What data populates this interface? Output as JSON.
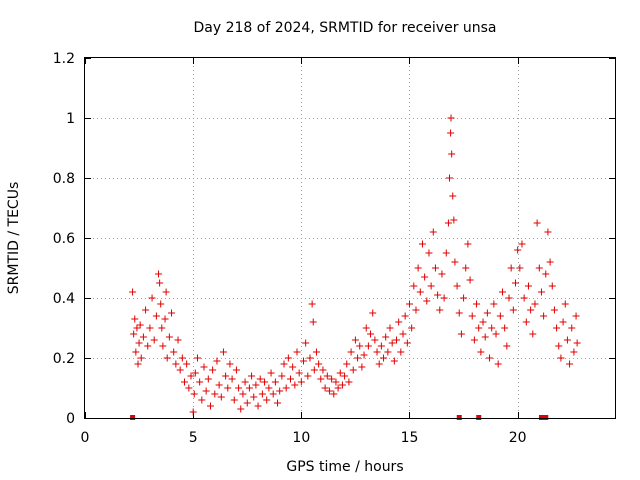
{
  "chart_data": {
    "type": "scatter",
    "title": "Day 218 of 2024, SRMTID for receiver unsa",
    "xlabel": "GPS time / hours",
    "ylabel": "SRMTID / TECUs",
    "xlim": [
      0,
      24.5
    ],
    "ylim": [
      0,
      1.2
    ],
    "xticks": [
      0,
      5,
      10,
      15,
      20
    ],
    "yticks": [
      0,
      0.2,
      0.4,
      0.6,
      0.8,
      1,
      1.2
    ],
    "xtick_labels": [
      "0",
      "5",
      "10",
      "15",
      "20"
    ],
    "ytick_labels": [
      "0",
      "0.2",
      "0.4",
      "0.6",
      "0.8",
      "1",
      "1.2"
    ],
    "grid": true,
    "marker": "+",
    "color": "#e00000",
    "series": [
      {
        "name": "SRMTID",
        "points": [
          [
            2.2,
            0.42
          ],
          [
            2.25,
            0.28
          ],
          [
            2.3,
            0.33
          ],
          [
            2.35,
            0.22
          ],
          [
            2.4,
            0.3
          ],
          [
            2.45,
            0.18
          ],
          [
            2.5,
            0.25
          ],
          [
            2.55,
            0.31
          ],
          [
            2.6,
            0.2
          ],
          [
            2.7,
            0.27
          ],
          [
            2.8,
            0.36
          ],
          [
            2.9,
            0.24
          ],
          [
            3.0,
            0.3
          ],
          [
            3.1,
            0.4
          ],
          [
            3.2,
            0.26
          ],
          [
            3.3,
            0.34
          ],
          [
            3.4,
            0.48
          ],
          [
            3.45,
            0.45
          ],
          [
            3.5,
            0.38
          ],
          [
            3.55,
            0.3
          ],
          [
            3.6,
            0.24
          ],
          [
            3.7,
            0.33
          ],
          [
            3.75,
            0.42
          ],
          [
            3.8,
            0.2
          ],
          [
            3.9,
            0.27
          ],
          [
            4.0,
            0.35
          ],
          [
            4.1,
            0.22
          ],
          [
            4.2,
            0.18
          ],
          [
            4.3,
            0.26
          ],
          [
            4.4,
            0.16
          ],
          [
            4.5,
            0.2
          ],
          [
            4.6,
            0.12
          ],
          [
            4.7,
            0.18
          ],
          [
            4.8,
            0.1
          ],
          [
            4.9,
            0.14
          ],
          [
            5.0,
            0.02
          ],
          [
            5.05,
            0.08
          ],
          [
            5.1,
            0.15
          ],
          [
            5.2,
            0.2
          ],
          [
            5.3,
            0.12
          ],
          [
            5.4,
            0.06
          ],
          [
            5.5,
            0.17
          ],
          [
            5.6,
            0.09
          ],
          [
            5.7,
            0.13
          ],
          [
            5.8,
            0.04
          ],
          [
            5.9,
            0.16
          ],
          [
            6.0,
            0.08
          ],
          [
            6.1,
            0.19
          ],
          [
            6.2,
            0.11
          ],
          [
            6.3,
            0.07
          ],
          [
            6.4,
            0.22
          ],
          [
            6.5,
            0.14
          ],
          [
            6.6,
            0.1
          ],
          [
            6.7,
            0.18
          ],
          [
            6.8,
            0.13
          ],
          [
            6.9,
            0.06
          ],
          [
            7.0,
            0.16
          ],
          [
            7.1,
            0.1
          ],
          [
            7.2,
            0.03
          ],
          [
            7.3,
            0.08
          ],
          [
            7.4,
            0.12
          ],
          [
            7.5,
            0.05
          ],
          [
            7.6,
            0.1
          ],
          [
            7.7,
            0.14
          ],
          [
            7.8,
            0.07
          ],
          [
            7.9,
            0.11
          ],
          [
            8.0,
            0.04
          ],
          [
            8.1,
            0.13
          ],
          [
            8.2,
            0.08
          ],
          [
            8.3,
            0.12
          ],
          [
            8.4,
            0.06
          ],
          [
            8.5,
            0.1
          ],
          [
            8.6,
            0.15
          ],
          [
            8.7,
            0.08
          ],
          [
            8.8,
            0.12
          ],
          [
            8.9,
            0.05
          ],
          [
            9.0,
            0.09
          ],
          [
            9.1,
            0.14
          ],
          [
            9.2,
            0.18
          ],
          [
            9.3,
            0.1
          ],
          [
            9.4,
            0.2
          ],
          [
            9.5,
            0.13
          ],
          [
            9.6,
            0.17
          ],
          [
            9.7,
            0.11
          ],
          [
            9.8,
            0.22
          ],
          [
            9.9,
            0.15
          ],
          [
            10.0,
            0.12
          ],
          [
            10.1,
            0.19
          ],
          [
            10.2,
            0.25
          ],
          [
            10.3,
            0.14
          ],
          [
            10.4,
            0.2
          ],
          [
            10.5,
            0.38
          ],
          [
            10.55,
            0.32
          ],
          [
            10.6,
            0.16
          ],
          [
            10.7,
            0.22
          ],
          [
            10.8,
            0.18
          ],
          [
            10.9,
            0.13
          ],
          [
            11.0,
            0.16
          ],
          [
            11.1,
            0.1
          ],
          [
            11.2,
            0.14
          ],
          [
            11.3,
            0.09
          ],
          [
            11.4,
            0.13
          ],
          [
            11.5,
            0.08
          ],
          [
            11.6,
            0.12
          ],
          [
            11.7,
            0.1
          ],
          [
            11.8,
            0.15
          ],
          [
            11.9,
            0.11
          ],
          [
            12.0,
            0.14
          ],
          [
            12.1,
            0.18
          ],
          [
            12.2,
            0.12
          ],
          [
            12.3,
            0.22
          ],
          [
            12.4,
            0.16
          ],
          [
            12.5,
            0.26
          ],
          [
            12.6,
            0.2
          ],
          [
            12.7,
            0.24
          ],
          [
            12.8,
            0.17
          ],
          [
            12.9,
            0.21
          ],
          [
            13.0,
            0.3
          ],
          [
            13.1,
            0.24
          ],
          [
            13.2,
            0.28
          ],
          [
            13.3,
            0.35
          ],
          [
            13.4,
            0.26
          ],
          [
            13.5,
            0.22
          ],
          [
            13.6,
            0.18
          ],
          [
            13.7,
            0.24
          ],
          [
            13.8,
            0.2
          ],
          [
            13.9,
            0.27
          ],
          [
            14.0,
            0.22
          ],
          [
            14.1,
            0.3
          ],
          [
            14.2,
            0.25
          ],
          [
            14.3,
            0.19
          ],
          [
            14.4,
            0.26
          ],
          [
            14.5,
            0.32
          ],
          [
            14.6,
            0.22
          ],
          [
            14.7,
            0.28
          ],
          [
            14.8,
            0.34
          ],
          [
            14.9,
            0.25
          ],
          [
            15.0,
            0.38
          ],
          [
            15.1,
            0.3
          ],
          [
            15.2,
            0.44
          ],
          [
            15.3,
            0.36
          ],
          [
            15.4,
            0.5
          ],
          [
            15.5,
            0.42
          ],
          [
            15.6,
            0.58
          ],
          [
            15.7,
            0.47
          ],
          [
            15.8,
            0.39
          ],
          [
            15.9,
            0.55
          ],
          [
            16.0,
            0.44
          ],
          [
            16.1,
            0.62
          ],
          [
            16.2,
            0.5
          ],
          [
            16.3,
            0.41
          ],
          [
            16.4,
            0.36
          ],
          [
            16.5,
            0.48
          ],
          [
            16.6,
            0.4
          ],
          [
            16.7,
            0.55
          ],
          [
            16.8,
            0.65
          ],
          [
            16.85,
            0.8
          ],
          [
            16.9,
            0.95
          ],
          [
            16.92,
            1.0
          ],
          [
            16.95,
            0.88
          ],
          [
            17.0,
            0.74
          ],
          [
            17.05,
            0.66
          ],
          [
            17.1,
            0.52
          ],
          [
            17.2,
            0.44
          ],
          [
            17.3,
            0.35
          ],
          [
            17.4,
            0.28
          ],
          [
            17.5,
            0.4
          ],
          [
            17.6,
            0.5
          ],
          [
            17.7,
            0.58
          ],
          [
            17.8,
            0.46
          ],
          [
            17.9,
            0.34
          ],
          [
            18.0,
            0.26
          ],
          [
            18.1,
            0.38
          ],
          [
            18.2,
            0.3
          ],
          [
            18.3,
            0.22
          ],
          [
            18.4,
            0.32
          ],
          [
            18.5,
            0.27
          ],
          [
            18.6,
            0.35
          ],
          [
            18.7,
            0.2
          ],
          [
            18.8,
            0.3
          ],
          [
            18.9,
            0.38
          ],
          [
            19.0,
            0.28
          ],
          [
            19.1,
            0.18
          ],
          [
            19.2,
            0.34
          ],
          [
            19.3,
            0.42
          ],
          [
            19.4,
            0.3
          ],
          [
            19.5,
            0.24
          ],
          [
            19.6,
            0.4
          ],
          [
            19.7,
            0.5
          ],
          [
            19.8,
            0.36
          ],
          [
            19.9,
            0.45
          ],
          [
            20.0,
            0.56
          ],
          [
            20.1,
            0.5
          ],
          [
            20.2,
            0.58
          ],
          [
            20.3,
            0.4
          ],
          [
            20.4,
            0.32
          ],
          [
            20.5,
            0.44
          ],
          [
            20.6,
            0.36
          ],
          [
            20.7,
            0.28
          ],
          [
            20.8,
            0.38
          ],
          [
            20.9,
            0.65
          ],
          [
            21.0,
            0.5
          ],
          [
            21.1,
            0.42
          ],
          [
            21.2,
            0.34
          ],
          [
            21.3,
            0.48
          ],
          [
            21.4,
            0.62
          ],
          [
            21.5,
            0.52
          ],
          [
            21.6,
            0.44
          ],
          [
            21.7,
            0.36
          ],
          [
            21.8,
            0.3
          ],
          [
            21.9,
            0.24
          ],
          [
            22.0,
            0.2
          ],
          [
            22.1,
            0.32
          ],
          [
            22.2,
            0.38
          ],
          [
            22.3,
            0.26
          ],
          [
            22.4,
            0.18
          ],
          [
            22.5,
            0.3
          ],
          [
            22.6,
            0.22
          ],
          [
            22.7,
            0.34
          ],
          [
            22.75,
            0.25
          ]
        ]
      }
    ],
    "bottom_markers_x": [
      2.2,
      17.3,
      18.2,
      21.1,
      21.3
    ]
  }
}
